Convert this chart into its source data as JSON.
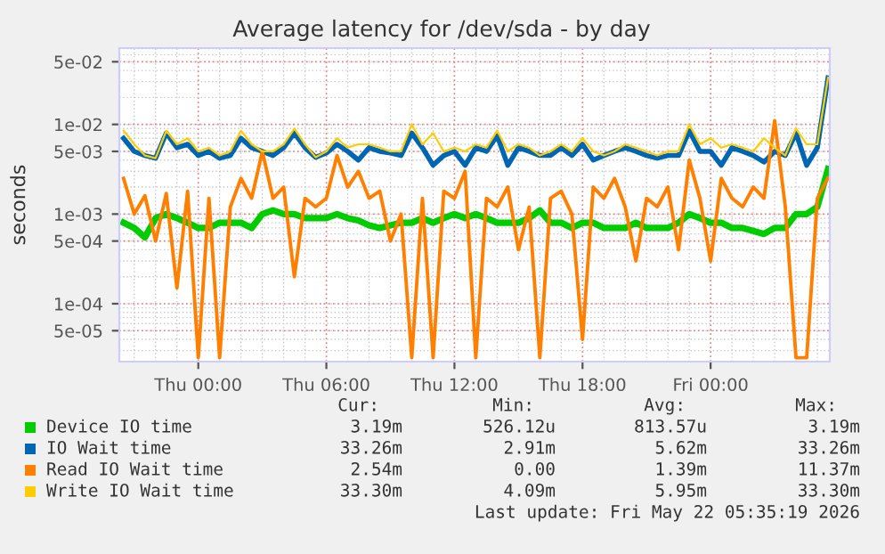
{
  "chart_data": {
    "type": "line",
    "title": "Average latency for /dev/sda - by day",
    "ylabel": "seconds",
    "x": [
      "2026-05-20T20:30",
      "2026-05-20T21:00",
      "2026-05-20T21:30",
      "2026-05-20T22:00",
      "2026-05-20T22:30",
      "2026-05-20T23:00",
      "2026-05-20T23:30",
      "2026-05-21T00:00",
      "2026-05-21T00:30",
      "2026-05-21T01:00",
      "2026-05-21T01:30",
      "2026-05-21T02:00",
      "2026-05-21T02:30",
      "2026-05-21T03:00",
      "2026-05-21T03:30",
      "2026-05-21T04:00",
      "2026-05-21T04:30",
      "2026-05-21T05:00",
      "2026-05-21T05:30",
      "2026-05-21T06:00",
      "2026-05-21T06:30",
      "2026-05-21T07:00",
      "2026-05-21T07:30",
      "2026-05-21T08:00",
      "2026-05-21T08:30",
      "2026-05-21T09:00",
      "2026-05-21T09:30",
      "2026-05-21T10:00",
      "2026-05-21T10:30",
      "2026-05-21T11:00",
      "2026-05-21T11:30",
      "2026-05-21T12:00",
      "2026-05-21T12:30",
      "2026-05-21T13:00",
      "2026-05-21T13:30",
      "2026-05-21T14:00",
      "2026-05-21T14:30",
      "2026-05-21T15:00",
      "2026-05-21T15:30",
      "2026-05-21T16:00",
      "2026-05-21T16:30",
      "2026-05-21T17:00",
      "2026-05-21T17:30",
      "2026-05-21T18:00",
      "2026-05-21T18:30",
      "2026-05-21T19:00",
      "2026-05-21T19:30",
      "2026-05-21T20:00",
      "2026-05-21T20:30",
      "2026-05-21T21:00",
      "2026-05-21T21:30",
      "2026-05-21T22:00",
      "2026-05-21T22:30",
      "2026-05-21T23:00",
      "2026-05-21T23:30",
      "2026-05-22T00:00",
      "2026-05-22T00:30",
      "2026-05-22T01:00",
      "2026-05-22T01:30",
      "2026-05-22T02:00",
      "2026-05-22T02:30",
      "2026-05-22T03:00",
      "2026-05-22T03:30",
      "2026-05-22T04:00",
      "2026-05-22T04:30",
      "2026-05-22T05:00",
      "2026-05-22T05:30"
    ],
    "series": [
      {
        "name": "Device IO time",
        "color": "#00cc00",
        "values": [
          0.0008,
          0.0007,
          0.00055,
          0.0009,
          0.001,
          0.0009,
          0.0008,
          0.0007,
          0.0007,
          0.0008,
          0.0008,
          0.0008,
          0.0007,
          0.001,
          0.0011,
          0.001,
          0.001,
          0.0009,
          0.0009,
          0.0009,
          0.001,
          0.0009,
          0.00085,
          0.00075,
          0.0007,
          0.00075,
          0.0008,
          0.0008,
          0.0009,
          0.0008,
          0.0009,
          0.001,
          0.0009,
          0.001,
          0.0009,
          0.0008,
          0.0008,
          0.0008,
          0.0009,
          0.0011,
          0.0008,
          0.0008,
          0.0007,
          0.0008,
          0.0008,
          0.0007,
          0.0007,
          0.0007,
          0.0008,
          0.0007,
          0.0007,
          0.0007,
          0.0008,
          0.001,
          0.0009,
          0.0008,
          0.0008,
          0.0007,
          0.0007,
          0.00065,
          0.0006,
          0.0007,
          0.0007,
          0.001,
          0.001,
          0.0012,
          0.00319
        ]
      },
      {
        "name": "IO Wait time",
        "color": "#0066b3",
        "values": [
          0.007,
          0.005,
          0.0045,
          0.0042,
          0.008,
          0.0055,
          0.006,
          0.0045,
          0.005,
          0.0042,
          0.0045,
          0.007,
          0.0055,
          0.005,
          0.0045,
          0.0055,
          0.008,
          0.0055,
          0.0043,
          0.0048,
          0.006,
          0.005,
          0.004,
          0.0055,
          0.005,
          0.0048,
          0.0045,
          0.008,
          0.0055,
          0.0035,
          0.0045,
          0.005,
          0.0035,
          0.0055,
          0.005,
          0.0075,
          0.0035,
          0.0055,
          0.005,
          0.0045,
          0.0045,
          0.0055,
          0.0045,
          0.006,
          0.004,
          0.0045,
          0.005,
          0.0055,
          0.005,
          0.0045,
          0.0042,
          0.0045,
          0.0045,
          0.0085,
          0.005,
          0.005,
          0.0035,
          0.0055,
          0.005,
          0.0045,
          0.0038,
          0.005,
          0.0045,
          0.008,
          0.0035,
          0.0055,
          0.033
        ]
      },
      {
        "name": "Read IO Wait time",
        "color": "#ff8000",
        "values": [
          0.0025,
          0.001,
          0.0016,
          0.0005,
          0.0017,
          0.00015,
          0.0018,
          2.5e-05,
          0.0015,
          2.5e-05,
          0.0012,
          0.0025,
          0.0015,
          0.005,
          0.0015,
          0.002,
          0.0002,
          0.0015,
          0.0012,
          0.0015,
          0.0045,
          0.002,
          0.003,
          0.0015,
          0.0018,
          0.0005,
          0.001,
          2.5e-05,
          0.0015,
          2.5e-05,
          0.0018,
          0.0015,
          0.003,
          2.5e-05,
          0.0015,
          0.0012,
          0.002,
          0.0004,
          0.0012,
          2.5e-05,
          0.0015,
          0.0018,
          0.001,
          4e-05,
          0.002,
          0.0015,
          0.0025,
          0.0012,
          0.0003,
          0.0015,
          0.0012,
          0.002,
          0.0004,
          0.004,
          0.0015,
          0.0003,
          0.0025,
          0.0015,
          0.0012,
          0.002,
          0.0015,
          0.011,
          0.0012,
          2.5e-05,
          2.5e-05,
          0.0015,
          0.00254
        ]
      },
      {
        "name": "Write IO Wait time",
        "color": "#ffcc00",
        "values": [
          0.0085,
          0.006,
          0.0045,
          0.0042,
          0.0085,
          0.006,
          0.007,
          0.005,
          0.0055,
          0.0045,
          0.005,
          0.0085,
          0.006,
          0.005,
          0.005,
          0.006,
          0.009,
          0.006,
          0.0043,
          0.005,
          0.007,
          0.0055,
          0.006,
          0.006,
          0.0055,
          0.005,
          0.005,
          0.01,
          0.006,
          0.008,
          0.005,
          0.0055,
          0.005,
          0.006,
          0.0055,
          0.0085,
          0.005,
          0.006,
          0.0055,
          0.0045,
          0.005,
          0.006,
          0.005,
          0.007,
          0.005,
          0.0045,
          0.005,
          0.006,
          0.0055,
          0.005,
          0.0045,
          0.005,
          0.005,
          0.01,
          0.006,
          0.007,
          0.0055,
          0.006,
          0.0055,
          0.005,
          0.007,
          0.0055,
          0.0045,
          0.009,
          0.006,
          0.006,
          0.0333
        ]
      }
    ],
    "log": "y",
    "xlim": [
      "2026-05-20T20:18",
      "2026-05-22T05:35"
    ],
    "ylim": [
      2.26e-05,
      0.071
    ],
    "xticks": [
      {
        "value": "2026-05-21T00:00",
        "label": "Thu 00:00"
      },
      {
        "value": "2026-05-21T06:00",
        "label": "Thu 06:00"
      },
      {
        "value": "2026-05-21T12:00",
        "label": "Thu 12:00"
      },
      {
        "value": "2026-05-21T18:00",
        "label": "Thu 18:00"
      },
      {
        "value": "2026-05-22T00:00",
        "label": "Fri 00:00"
      }
    ],
    "yticks": [
      {
        "value": 5e-05,
        "label": "5e-05"
      },
      {
        "value": 0.0001,
        "label": "1e-04"
      },
      {
        "value": 0.0005,
        "label": "5e-04"
      },
      {
        "value": 0.001,
        "label": "1e-03"
      },
      {
        "value": 0.005,
        "label": "5e-03"
      },
      {
        "value": 0.01,
        "label": "1e-02"
      },
      {
        "value": 0.05,
        "label": "5e-02"
      }
    ],
    "grid": true,
    "legend": "bottom",
    "annotations": [
      "Cur:",
      "Min:",
      "Avg:",
      "Max:",
      "3.19m",
      "526.12u",
      "813.57u",
      "3.19m",
      "33.26m",
      "2.91m",
      "5.62m",
      "33.26m",
      "2.54m",
      "0.00",
      "1.39m",
      "11.37m",
      "33.30m",
      "4.09m",
      "5.95m",
      "33.30m",
      "Last update: Fri May 22 05:35:19 2026"
    ]
  }
}
